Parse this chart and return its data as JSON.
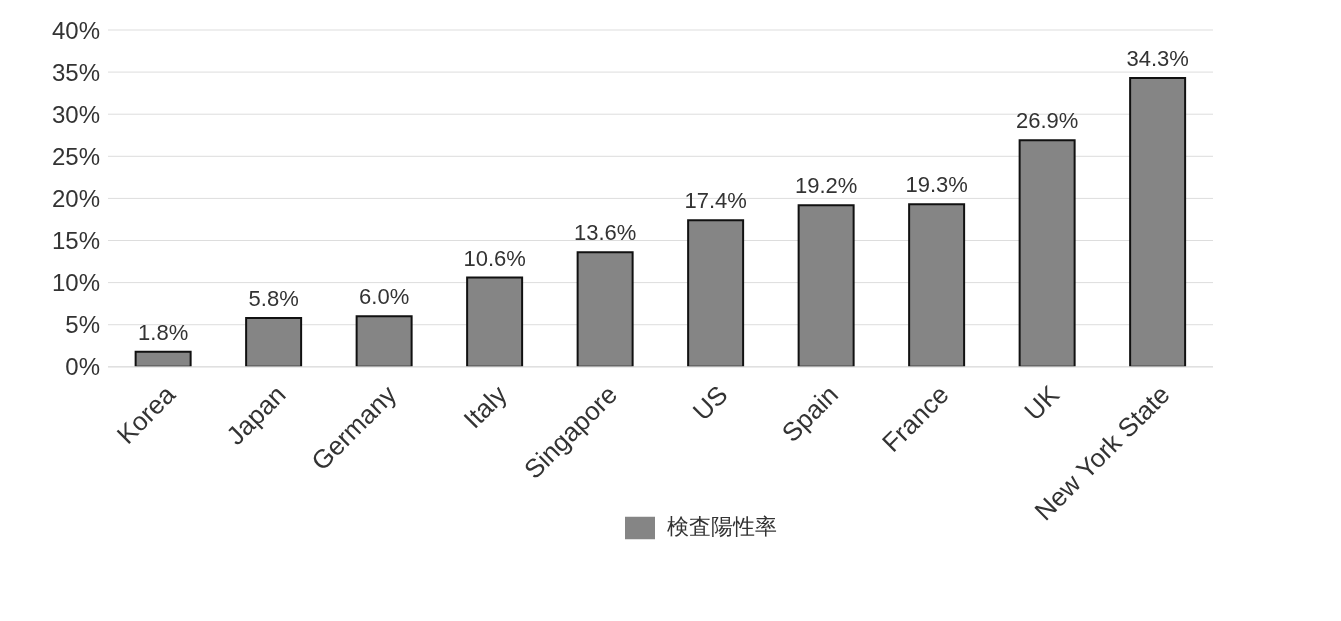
{
  "chart_data": {
    "type": "bar",
    "categories": [
      "Korea",
      "Japan",
      "Germany",
      "Italy",
      "Singapore",
      "US",
      "Spain",
      "France",
      "UK",
      "New York State"
    ],
    "series": [
      {
        "name": "検査陽性率",
        "color": "#858585",
        "values": [
          1.8,
          5.8,
          6.0,
          10.6,
          13.6,
          17.4,
          19.2,
          19.3,
          26.9,
          34.3
        ],
        "value_labels": [
          "1.8%",
          "5.8%",
          "6.0%",
          "10.6%",
          "13.6%",
          "17.4%",
          "19.2%",
          "19.3%",
          "26.9%",
          "34.3%"
        ]
      }
    ],
    "ylim": [
      0,
      40
    ],
    "yticks": [
      {
        "value": 0,
        "label": "0%"
      },
      {
        "value": 5,
        "label": "5%"
      },
      {
        "value": 10,
        "label": "10%"
      },
      {
        "value": 15,
        "label": "15%"
      },
      {
        "value": 20,
        "label": "20%"
      },
      {
        "value": 25,
        "label": "25%"
      },
      {
        "value": 30,
        "label": "30%"
      },
      {
        "value": 35,
        "label": "35%"
      },
      {
        "value": 40,
        "label": "40%"
      }
    ],
    "grid": "y",
    "legend": "bottom right"
  }
}
